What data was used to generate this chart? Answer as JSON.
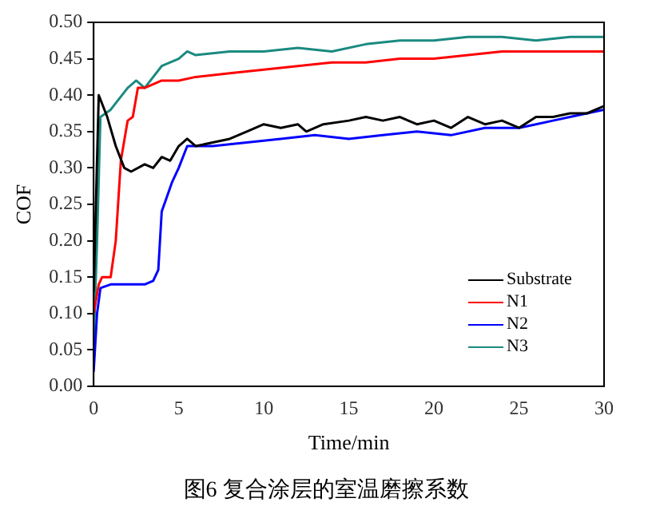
{
  "chart_data": {
    "type": "line",
    "xlabel": "Time/min",
    "ylabel": "COF",
    "annotations": [
      "图6 复合涂层的室温磨擦系数"
    ],
    "xlim": [
      0,
      30
    ],
    "xticks": [
      0,
      5,
      10,
      15,
      20,
      25,
      30
    ],
    "ylim": [
      0,
      0.5
    ],
    "yticks": [
      {
        "value": 0,
        "label": "0.00"
      },
      {
        "value": 0.05,
        "label": "0.05"
      },
      {
        "value": 0.1,
        "label": "0.10"
      },
      {
        "value": 0.15,
        "label": "0.15"
      },
      {
        "value": 0.2,
        "label": "0.20"
      },
      {
        "value": 0.25,
        "label": "0.25"
      },
      {
        "value": 0.3,
        "label": "0.30"
      },
      {
        "value": 0.35,
        "label": "0.35"
      },
      {
        "value": 0.4,
        "label": "0.40"
      },
      {
        "value": 0.45,
        "label": "0.45"
      },
      {
        "value": 0.5,
        "label": "0.50"
      }
    ],
    "grid": false,
    "legend": "bottom right",
    "marker": "none",
    "line_style": "solid",
    "series": [
      {
        "name": "Substrate",
        "color": "#000000",
        "x": [
          0,
          0.3,
          0.8,
          1.3,
          1.8,
          2.2,
          3,
          3.5,
          4,
          4.5,
          5,
          5.5,
          6,
          7,
          8,
          9,
          10,
          11,
          12,
          12.5,
          13.5,
          15,
          16,
          17,
          18,
          19,
          20,
          21,
          22,
          23,
          24,
          25,
          26,
          27,
          28,
          29,
          30
        ],
        "values": [
          0.13,
          0.4,
          0.37,
          0.33,
          0.3,
          0.295,
          0.305,
          0.3,
          0.315,
          0.31,
          0.33,
          0.34,
          0.33,
          0.335,
          0.34,
          0.35,
          0.36,
          0.355,
          0.36,
          0.35,
          0.36,
          0.365,
          0.37,
          0.365,
          0.37,
          0.36,
          0.365,
          0.355,
          0.37,
          0.36,
          0.365,
          0.355,
          0.37,
          0.37,
          0.375,
          0.375,
          0.385
        ]
      },
      {
        "name": "N1",
        "color": "#ff0000",
        "x": [
          0,
          0.3,
          0.5,
          1,
          1.3,
          1.6,
          2,
          2.3,
          2.6,
          3,
          4,
          5,
          6,
          8,
          10,
          12,
          14,
          16,
          18,
          20,
          22,
          24,
          26,
          28,
          30
        ],
        "values": [
          0.1,
          0.14,
          0.15,
          0.15,
          0.2,
          0.31,
          0.365,
          0.37,
          0.41,
          0.41,
          0.42,
          0.42,
          0.425,
          0.43,
          0.435,
          0.44,
          0.445,
          0.445,
          0.45,
          0.45,
          0.455,
          0.46,
          0.46,
          0.46,
          0.46
        ]
      },
      {
        "name": "N2",
        "color": "#0000ff",
        "x": [
          0,
          0.2,
          0.4,
          1,
          2,
          3,
          3.5,
          3.8,
          4,
          4.3,
          4.6,
          5,
          5.5,
          6,
          7,
          9,
          11,
          13,
          15,
          17,
          19,
          21,
          23,
          25,
          26,
          27,
          28,
          29,
          30
        ],
        "values": [
          0.02,
          0.1,
          0.135,
          0.14,
          0.14,
          0.14,
          0.145,
          0.16,
          0.24,
          0.26,
          0.28,
          0.3,
          0.33,
          0.33,
          0.33,
          0.335,
          0.34,
          0.345,
          0.34,
          0.345,
          0.35,
          0.345,
          0.355,
          0.355,
          0.36,
          0.365,
          0.37,
          0.375,
          0.38
        ]
      },
      {
        "name": "N3",
        "color": "#1a8a80",
        "x": [
          0,
          0.2,
          0.4,
          1,
          2,
          2.5,
          3,
          4,
          5,
          5.5,
          6,
          8,
          10,
          12,
          14,
          16,
          18,
          20,
          22,
          24,
          26,
          28,
          30
        ],
        "values": [
          0.06,
          0.2,
          0.37,
          0.38,
          0.41,
          0.42,
          0.41,
          0.44,
          0.45,
          0.46,
          0.455,
          0.46,
          0.46,
          0.465,
          0.46,
          0.47,
          0.475,
          0.475,
          0.48,
          0.48,
          0.475,
          0.48,
          0.48
        ]
      }
    ]
  }
}
